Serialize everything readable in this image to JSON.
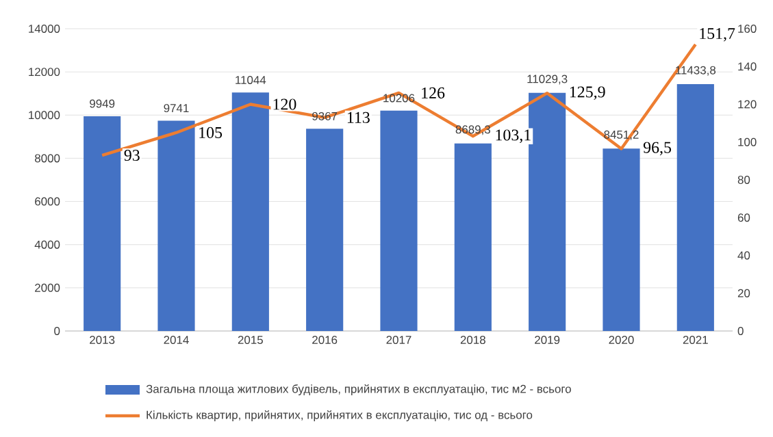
{
  "chart_data": {
    "type": "bar",
    "categories": [
      "2013",
      "2014",
      "2015",
      "2016",
      "2017",
      "2018",
      "2019",
      "2020",
      "2021"
    ],
    "series": [
      {
        "name": "Загальна площа житлових будівель, прийнятих в експлуатацію, тис м2 - всього",
        "color": "#4472c4",
        "values": [
          9949,
          9741,
          11044,
          9367,
          10206,
          8689.3,
          11029.3,
          8451.2,
          11433.8
        ],
        "value_labels": [
          "9949",
          "9741",
          "11044",
          "9367",
          "10206",
          "8689,3",
          "11029,3",
          "8451,2",
          "11433,8"
        ]
      },
      {
        "name": "Кількість квартир, прийнятих, прийнятих в експлуатацію, тис од  - всього",
        "type": "line",
        "axis": "y2",
        "color": "#ed7d31",
        "values": [
          93,
          105,
          120,
          113,
          126,
          103.1,
          125.9,
          96.5,
          151.7
        ],
        "value_labels": [
          "93",
          "105",
          "120",
          "113",
          "126",
          "103,1",
          "125,9",
          "96,5",
          "151,7"
        ]
      }
    ],
    "ylim": [
      0,
      14000
    ],
    "yticks": [
      0,
      2000,
      4000,
      6000,
      8000,
      10000,
      12000,
      14000
    ],
    "y2lim": [
      0,
      160
    ],
    "y2ticks": [
      0,
      20,
      40,
      60,
      80,
      100,
      120,
      140,
      160
    ],
    "grid": "y",
    "legend": "bottom"
  }
}
